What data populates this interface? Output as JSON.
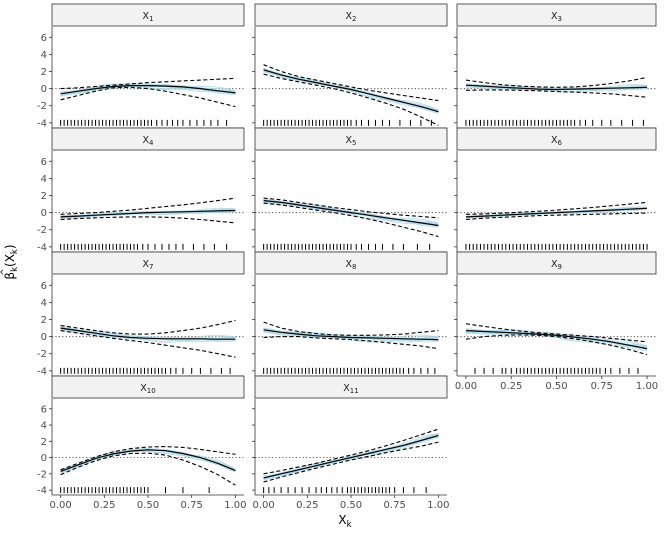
{
  "chart_data": {
    "type": "line",
    "title": "",
    "xlabel": "X",
    "xlabel_subscript": "k",
    "ylabel": "β",
    "ylabel_hat": "^",
    "ylabel_subscript": "k",
    "ylabel_arg": "(X",
    "ylabel_arg_subscript": "k",
    "ylabel_close": ")",
    "xlim": [
      0,
      1
    ],
    "ylim": [
      -4.6,
      7.2
    ],
    "xticks": [
      0,
      0.25,
      0.5,
      0.75,
      1
    ],
    "xtick_labels": [
      "0.00",
      "0.25",
      "0.50",
      "0.75",
      "1.00"
    ],
    "yticks": [
      -4,
      -2,
      0,
      2,
      4,
      6
    ],
    "ytick_labels": [
      "-4",
      "-2",
      "0",
      "2",
      "4",
      "6"
    ],
    "reference_line": 0,
    "colors": {
      "samples": "#add8e6",
      "estimate": "#000000",
      "bands": "#000000",
      "strip": "#f2f2f2",
      "frame": "#333333"
    },
    "panels": [
      {
        "label": "X",
        "sub": "1",
        "x": [
          0,
          0.1,
          0.2,
          0.3,
          0.4,
          0.5,
          0.6,
          0.7,
          0.8,
          0.9,
          1
        ],
        "estimate": [
          -0.6,
          -0.3,
          0.0,
          0.25,
          0.35,
          0.35,
          0.3,
          0.2,
          0.0,
          -0.25,
          -0.5
        ],
        "upper": [
          0.0,
          0.1,
          0.25,
          0.4,
          0.55,
          0.7,
          0.8,
          0.9,
          1.0,
          1.1,
          1.2
        ],
        "lower": [
          -1.3,
          -0.8,
          -0.3,
          0.1,
          0.15,
          0.0,
          -0.3,
          -0.7,
          -1.1,
          -1.6,
          -2.1
        ],
        "sample_spread": 0.35,
        "rugs": [
          0.0,
          0.02,
          0.04,
          0.06,
          0.08,
          0.1,
          0.12,
          0.14,
          0.16,
          0.18,
          0.2,
          0.22,
          0.24,
          0.26,
          0.28,
          0.3,
          0.32,
          0.34,
          0.36,
          0.38,
          0.4,
          0.42,
          0.44,
          0.46,
          0.48,
          0.5,
          0.52,
          0.55,
          0.58,
          0.61,
          0.64,
          0.67,
          0.7,
          0.74,
          0.78,
          0.82,
          0.86,
          0.9,
          0.95
        ]
      },
      {
        "label": "X",
        "sub": "2",
        "x": [
          0,
          0.1,
          0.2,
          0.3,
          0.4,
          0.5,
          0.6,
          0.7,
          0.8,
          0.9,
          1
        ],
        "estimate": [
          2.2,
          1.6,
          1.1,
          0.7,
          0.3,
          -0.1,
          -0.6,
          -1.1,
          -1.6,
          -2.1,
          -2.7
        ],
        "upper": [
          2.8,
          2.0,
          1.4,
          1.0,
          0.6,
          0.2,
          -0.2,
          -0.5,
          -0.8,
          -1.1,
          -1.4
        ],
        "lower": [
          1.7,
          1.2,
          0.8,
          0.4,
          0.0,
          -0.5,
          -1.1,
          -1.7,
          -2.4,
          -3.3,
          -4.3
        ],
        "sample_spread": 0.3,
        "rugs": [
          0.0,
          0.02,
          0.04,
          0.06,
          0.08,
          0.1,
          0.12,
          0.14,
          0.16,
          0.18,
          0.2,
          0.22,
          0.24,
          0.26,
          0.28,
          0.3,
          0.32,
          0.34,
          0.36,
          0.38,
          0.4,
          0.42,
          0.44,
          0.46,
          0.48,
          0.5,
          0.53,
          0.56,
          0.6,
          0.64,
          0.68,
          0.72,
          0.78,
          0.84,
          0.9,
          0.96
        ]
      },
      {
        "label": "X",
        "sub": "3",
        "x": [
          0,
          0.1,
          0.2,
          0.3,
          0.4,
          0.5,
          0.6,
          0.7,
          0.8,
          0.9,
          1
        ],
        "estimate": [
          0.4,
          0.3,
          0.15,
          0.05,
          -0.05,
          -0.1,
          -0.05,
          0.0,
          0.05,
          0.1,
          0.15
        ],
        "upper": [
          1.0,
          0.7,
          0.45,
          0.3,
          0.2,
          0.15,
          0.2,
          0.35,
          0.6,
          0.9,
          1.3
        ],
        "lower": [
          -0.2,
          -0.15,
          -0.15,
          -0.2,
          -0.25,
          -0.35,
          -0.4,
          -0.5,
          -0.6,
          -0.8,
          -1.0
        ],
        "sample_spread": 0.3,
        "rugs": [
          0.0,
          0.02,
          0.04,
          0.06,
          0.08,
          0.1,
          0.12,
          0.14,
          0.16,
          0.18,
          0.2,
          0.22,
          0.24,
          0.26,
          0.28,
          0.3,
          0.32,
          0.34,
          0.36,
          0.38,
          0.4,
          0.42,
          0.44,
          0.46,
          0.48,
          0.5,
          0.52,
          0.54,
          0.56,
          0.58,
          0.6,
          0.63,
          0.66,
          0.7,
          0.75,
          0.8,
          0.86,
          0.92,
          0.98
        ]
      },
      {
        "label": "X",
        "sub": "4",
        "x": [
          0,
          0.1,
          0.2,
          0.3,
          0.4,
          0.5,
          0.6,
          0.7,
          0.8,
          0.9,
          1
        ],
        "estimate": [
          -0.5,
          -0.4,
          -0.3,
          -0.2,
          -0.1,
          0.0,
          0.05,
          0.1,
          0.15,
          0.2,
          0.25
        ],
        "upper": [
          -0.2,
          -0.1,
          0.0,
          0.15,
          0.3,
          0.5,
          0.7,
          0.9,
          1.15,
          1.4,
          1.7
        ],
        "lower": [
          -0.8,
          -0.7,
          -0.6,
          -0.55,
          -0.5,
          -0.5,
          -0.55,
          -0.65,
          -0.8,
          -1.0,
          -1.2
        ],
        "sample_spread": 0.25,
        "rugs": [
          0.0,
          0.02,
          0.04,
          0.06,
          0.08,
          0.1,
          0.12,
          0.14,
          0.16,
          0.18,
          0.2,
          0.22,
          0.24,
          0.26,
          0.28,
          0.3,
          0.32,
          0.34,
          0.36,
          0.38,
          0.4,
          0.42,
          0.44,
          0.47,
          0.5,
          0.54,
          0.58,
          0.62,
          0.66,
          0.7,
          0.76,
          0.82,
          0.88,
          0.95
        ]
      },
      {
        "label": "X",
        "sub": "5",
        "x": [
          0,
          0.1,
          0.2,
          0.3,
          0.4,
          0.5,
          0.6,
          0.7,
          0.8,
          0.9,
          1
        ],
        "estimate": [
          1.4,
          1.2,
          0.9,
          0.6,
          0.3,
          0.0,
          -0.3,
          -0.6,
          -0.9,
          -1.2,
          -1.5
        ],
        "upper": [
          1.7,
          1.5,
          1.2,
          0.9,
          0.6,
          0.35,
          0.1,
          -0.1,
          -0.3,
          -0.45,
          -0.6
        ],
        "lower": [
          1.1,
          0.9,
          0.6,
          0.3,
          0.0,
          -0.35,
          -0.75,
          -1.2,
          -1.7,
          -2.2,
          -2.8
        ],
        "sample_spread": 0.35,
        "rugs": [
          0.0,
          0.02,
          0.04,
          0.06,
          0.08,
          0.1,
          0.12,
          0.14,
          0.16,
          0.18,
          0.2,
          0.22,
          0.24,
          0.26,
          0.28,
          0.3,
          0.32,
          0.34,
          0.36,
          0.38,
          0.4,
          0.42,
          0.44,
          0.46,
          0.48,
          0.5,
          0.53,
          0.56,
          0.6,
          0.64,
          0.68,
          0.74,
          0.8,
          0.88,
          0.95
        ]
      },
      {
        "label": "X",
        "sub": "6",
        "x": [
          0,
          0.1,
          0.2,
          0.3,
          0.4,
          0.5,
          0.6,
          0.7,
          0.8,
          0.9,
          1
        ],
        "estimate": [
          -0.5,
          -0.4,
          -0.3,
          -0.2,
          -0.1,
          0.0,
          0.1,
          0.2,
          0.3,
          0.4,
          0.5
        ],
        "upper": [
          -0.2,
          -0.15,
          -0.05,
          0.05,
          0.15,
          0.3,
          0.45,
          0.6,
          0.8,
          1.0,
          1.2
        ],
        "lower": [
          -0.8,
          -0.65,
          -0.55,
          -0.45,
          -0.35,
          -0.3,
          -0.25,
          -0.2,
          -0.15,
          -0.1,
          -0.05
        ],
        "sample_spread": 0.2,
        "rugs": [
          0.0,
          0.02,
          0.04,
          0.06,
          0.08,
          0.1,
          0.12,
          0.14,
          0.16,
          0.18,
          0.2,
          0.22,
          0.24,
          0.26,
          0.28,
          0.3,
          0.32,
          0.34,
          0.36,
          0.38,
          0.4,
          0.42,
          0.44,
          0.46,
          0.48,
          0.5,
          0.52,
          0.54,
          0.56,
          0.58,
          0.6,
          0.62,
          0.64,
          0.66,
          0.68,
          0.7,
          0.72,
          0.74,
          0.76,
          0.78,
          0.8,
          0.82,
          0.84,
          0.86,
          0.88,
          0.9,
          0.92,
          0.94,
          0.96,
          0.98,
          1.0
        ]
      },
      {
        "label": "X",
        "sub": "7",
        "x": [
          0,
          0.1,
          0.2,
          0.3,
          0.4,
          0.5,
          0.6,
          0.7,
          0.8,
          0.9,
          1
        ],
        "estimate": [
          1.0,
          0.7,
          0.4,
          0.1,
          -0.1,
          -0.2,
          -0.25,
          -0.25,
          -0.25,
          -0.3,
          -0.3
        ],
        "upper": [
          1.3,
          1.0,
          0.7,
          0.45,
          0.3,
          0.3,
          0.45,
          0.7,
          1.0,
          1.4,
          1.9
        ],
        "lower": [
          0.7,
          0.4,
          0.1,
          -0.2,
          -0.45,
          -0.7,
          -1.0,
          -1.3,
          -1.6,
          -2.0,
          -2.4
        ],
        "sample_spread": 0.35,
        "rugs": [
          0.0,
          0.02,
          0.04,
          0.06,
          0.08,
          0.1,
          0.12,
          0.14,
          0.16,
          0.18,
          0.2,
          0.22,
          0.24,
          0.26,
          0.28,
          0.3,
          0.32,
          0.34,
          0.36,
          0.38,
          0.4,
          0.42,
          0.44,
          0.46,
          0.48,
          0.5,
          0.52,
          0.54,
          0.56,
          0.58,
          0.6,
          0.63,
          0.66,
          0.7,
          0.75,
          0.8,
          0.86,
          0.92,
          0.97
        ]
      },
      {
        "label": "X",
        "sub": "8",
        "x": [
          0,
          0.1,
          0.2,
          0.3,
          0.4,
          0.5,
          0.6,
          0.7,
          0.8,
          0.9,
          1
        ],
        "estimate": [
          0.8,
          0.5,
          0.3,
          0.1,
          0.0,
          -0.1,
          -0.15,
          -0.2,
          -0.25,
          -0.3,
          -0.35
        ],
        "upper": [
          1.7,
          1.0,
          0.6,
          0.35,
          0.2,
          0.15,
          0.15,
          0.2,
          0.3,
          0.5,
          0.7
        ],
        "lower": [
          -0.1,
          0.0,
          0.0,
          -0.15,
          -0.25,
          -0.35,
          -0.5,
          -0.7,
          -0.9,
          -1.1,
          -1.4
        ],
        "sample_spread": 0.4,
        "rugs": [
          0.0,
          0.02,
          0.04,
          0.06,
          0.08,
          0.1,
          0.12,
          0.14,
          0.16,
          0.18,
          0.2,
          0.22,
          0.24,
          0.26,
          0.28,
          0.3,
          0.32,
          0.34,
          0.36,
          0.38,
          0.4,
          0.42,
          0.44,
          0.46,
          0.48,
          0.5,
          0.52,
          0.54,
          0.56,
          0.58,
          0.6,
          0.62,
          0.64,
          0.66,
          0.68,
          0.7,
          0.72,
          0.74,
          0.76,
          0.78,
          0.8,
          0.83,
          0.86,
          0.9,
          0.94,
          0.98
        ]
      },
      {
        "label": "X",
        "sub": "9",
        "x": [
          0,
          0.1,
          0.2,
          0.3,
          0.4,
          0.5,
          0.6,
          0.7,
          0.8,
          0.9,
          1
        ],
        "estimate": [
          0.7,
          0.6,
          0.5,
          0.4,
          0.3,
          0.15,
          -0.05,
          -0.3,
          -0.6,
          -1.0,
          -1.4
        ],
        "upper": [
          1.5,
          1.2,
          0.9,
          0.65,
          0.45,
          0.3,
          0.15,
          0.0,
          -0.2,
          -0.4,
          -0.6
        ],
        "lower": [
          -0.3,
          0.0,
          0.15,
          0.2,
          0.15,
          0.0,
          -0.25,
          -0.6,
          -1.0,
          -1.5,
          -2.1
        ],
        "sample_spread": 0.4,
        "rugs": [
          0.05,
          0.1,
          0.15,
          0.2,
          0.22,
          0.25,
          0.28,
          0.3,
          0.32,
          0.34,
          0.36,
          0.38,
          0.4,
          0.42,
          0.44,
          0.46,
          0.48,
          0.5,
          0.52,
          0.54,
          0.56,
          0.58,
          0.6,
          0.62,
          0.64,
          0.66,
          0.68,
          0.7,
          0.72,
          0.74,
          0.77,
          0.8,
          0.85,
          0.9,
          0.95
        ]
      },
      {
        "label": "X",
        "sub": "10",
        "x": [
          0,
          0.1,
          0.2,
          0.3,
          0.4,
          0.5,
          0.6,
          0.7,
          0.8,
          0.9,
          1
        ],
        "estimate": [
          -1.7,
          -0.9,
          -0.1,
          0.45,
          0.8,
          0.95,
          0.85,
          0.5,
          0.0,
          -0.7,
          -1.6
        ],
        "upper": [
          -1.5,
          -0.7,
          0.1,
          0.7,
          1.1,
          1.3,
          1.35,
          1.25,
          1.0,
          0.7,
          0.4
        ],
        "lower": [
          -2.1,
          -1.2,
          -0.4,
          0.2,
          0.5,
          0.55,
          0.3,
          -0.3,
          -1.1,
          -2.1,
          -3.4
        ],
        "sample_spread": 0.3,
        "rugs": [
          0.0,
          0.02,
          0.04,
          0.06,
          0.08,
          0.1,
          0.12,
          0.14,
          0.16,
          0.18,
          0.2,
          0.22,
          0.24,
          0.26,
          0.28,
          0.3,
          0.32,
          0.34,
          0.36,
          0.38,
          0.4,
          0.42,
          0.44,
          0.46,
          0.48,
          0.5,
          0.6,
          0.7,
          0.85
        ]
      },
      {
        "label": "X",
        "sub": "11",
        "x": [
          0,
          0.1,
          0.2,
          0.3,
          0.4,
          0.5,
          0.6,
          0.7,
          0.8,
          0.9,
          1
        ],
        "estimate": [
          -2.5,
          -2.0,
          -1.5,
          -1.0,
          -0.5,
          0.0,
          0.5,
          1.0,
          1.5,
          2.1,
          2.7
        ],
        "upper": [
          -2.0,
          -1.6,
          -1.15,
          -0.7,
          -0.2,
          0.3,
          0.85,
          1.45,
          2.1,
          2.8,
          3.5
        ],
        "lower": [
          -3.0,
          -2.4,
          -1.85,
          -1.3,
          -0.8,
          -0.3,
          0.15,
          0.6,
          1.0,
          1.4,
          1.9
        ],
        "sample_spread": 0.35,
        "rugs": [
          0.0,
          0.03,
          0.06,
          0.1,
          0.14,
          0.18,
          0.22,
          0.26,
          0.3,
          0.33,
          0.36,
          0.39,
          0.42,
          0.45,
          0.48,
          0.5,
          0.52,
          0.54,
          0.56,
          0.58,
          0.6,
          0.62,
          0.64,
          0.66,
          0.68,
          0.7,
          0.72,
          0.75,
          0.8,
          0.86,
          0.93
        ]
      }
    ]
  }
}
